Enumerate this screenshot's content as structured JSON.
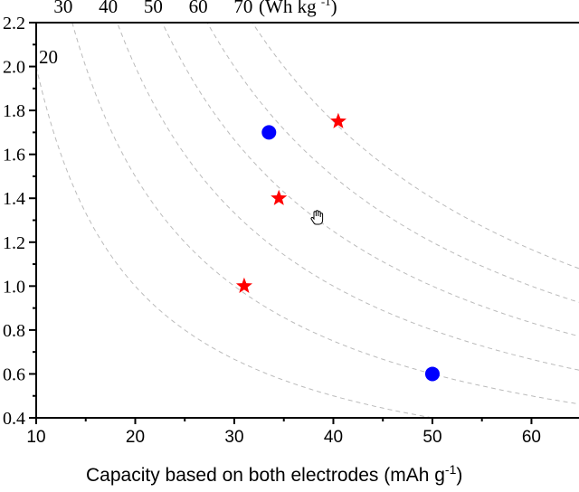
{
  "chart_data": {
    "type": "scatter",
    "xlabel": "Capacity based on both electrodes (mAh g",
    "xlabel_sup": "-1",
    "xlabel_end": ")",
    "xlim": [
      10,
      64.8
    ],
    "ylim": [
      0.4,
      2.2
    ],
    "x_ticks": [
      "10",
      "20",
      "30",
      "40",
      "50",
      "60"
    ],
    "y_ticks": [
      "0.4",
      "0.6",
      "0.8",
      "1.0",
      "1.2",
      "1.4",
      "1.6",
      "1.8",
      "2.0",
      "2.2"
    ],
    "iso_energy_lines": {
      "values": [
        20,
        30,
        40,
        50,
        60,
        70
      ],
      "labels": [
        "20",
        "30",
        "40",
        "50",
        "60",
        "70"
      ],
      "unit": "(Wh kg",
      "unit_sup": "-1",
      "unit_end": ")",
      "color": "#bbbbbb",
      "style": "dashed"
    },
    "series": [
      {
        "marker": "circle",
        "color": "#0000ff",
        "points": [
          [
            33.5,
            1.7
          ],
          [
            50.0,
            0.6
          ]
        ]
      },
      {
        "marker": "star",
        "color": "#ff0000",
        "points": [
          [
            40.5,
            1.75
          ],
          [
            34.5,
            1.4
          ],
          [
            31.0,
            1.0
          ]
        ]
      }
    ],
    "grid": false,
    "legend": "none"
  },
  "cursor": {
    "icon": "hand-cursor-icon"
  }
}
